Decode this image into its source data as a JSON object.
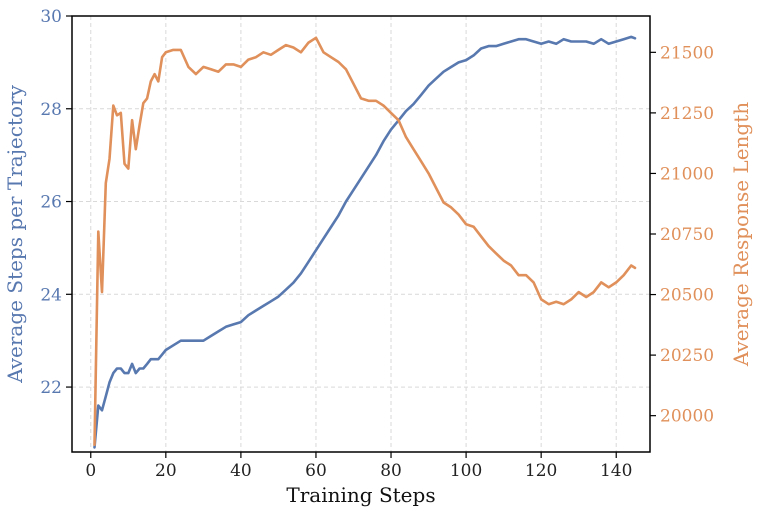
{
  "chart_data": {
    "type": "line",
    "xlabel": "Training Steps",
    "ylabel_left": "Average Steps per Trajectory",
    "ylabel_right": "Average Response Length",
    "xlim": [
      -5,
      149
    ],
    "ylim_left": [
      20.6,
      30.0
    ],
    "ylim_right": [
      19850,
      21650
    ],
    "x_ticks": [
      0,
      20,
      40,
      60,
      80,
      100,
      120,
      140
    ],
    "y_left_ticks": [
      22,
      24,
      26,
      28,
      30
    ],
    "y_right_ticks": [
      20000,
      20250,
      20500,
      20750,
      21000,
      21250,
      21500
    ],
    "grid": true,
    "colors": {
      "left": "#5878b0",
      "right": "#e0905a",
      "grid": "#d9d9d9"
    },
    "series": [
      {
        "axis": "left",
        "points": [
          [
            1,
            20.7
          ],
          [
            2,
            21.6
          ],
          [
            3,
            21.5
          ],
          [
            4,
            21.8
          ],
          [
            5,
            22.1
          ],
          [
            6,
            22.3
          ],
          [
            7,
            22.4
          ],
          [
            8,
            22.4
          ],
          [
            9,
            22.3
          ],
          [
            10,
            22.3
          ],
          [
            11,
            22.5
          ],
          [
            12,
            22.3
          ],
          [
            13,
            22.4
          ],
          [
            14,
            22.4
          ],
          [
            15,
            22.5
          ],
          [
            16,
            22.6
          ],
          [
            17,
            22.6
          ],
          [
            18,
            22.6
          ],
          [
            19,
            22.7
          ],
          [
            20,
            22.8
          ],
          [
            22,
            22.9
          ],
          [
            24,
            23.0
          ],
          [
            26,
            23.0
          ],
          [
            28,
            23.0
          ],
          [
            30,
            23.0
          ],
          [
            32,
            23.1
          ],
          [
            34,
            23.2
          ],
          [
            36,
            23.3
          ],
          [
            38,
            23.35
          ],
          [
            40,
            23.4
          ],
          [
            42,
            23.55
          ],
          [
            44,
            23.65
          ],
          [
            46,
            23.75
          ],
          [
            48,
            23.85
          ],
          [
            50,
            23.95
          ],
          [
            52,
            24.1
          ],
          [
            54,
            24.25
          ],
          [
            56,
            24.45
          ],
          [
            58,
            24.7
          ],
          [
            60,
            24.95
          ],
          [
            62,
            25.2
          ],
          [
            64,
            25.45
          ],
          [
            66,
            25.7
          ],
          [
            68,
            26.0
          ],
          [
            70,
            26.25
          ],
          [
            72,
            26.5
          ],
          [
            74,
            26.75
          ],
          [
            76,
            27.0
          ],
          [
            78,
            27.3
          ],
          [
            80,
            27.55
          ],
          [
            82,
            27.75
          ],
          [
            84,
            27.95
          ],
          [
            86,
            28.1
          ],
          [
            88,
            28.3
          ],
          [
            90,
            28.5
          ],
          [
            92,
            28.65
          ],
          [
            94,
            28.8
          ],
          [
            96,
            28.9
          ],
          [
            98,
            29.0
          ],
          [
            100,
            29.05
          ],
          [
            102,
            29.15
          ],
          [
            104,
            29.3
          ],
          [
            106,
            29.35
          ],
          [
            108,
            29.35
          ],
          [
            110,
            29.4
          ],
          [
            112,
            29.45
          ],
          [
            114,
            29.5
          ],
          [
            116,
            29.5
          ],
          [
            118,
            29.45
          ],
          [
            120,
            29.4
          ],
          [
            122,
            29.45
          ],
          [
            124,
            29.4
          ],
          [
            126,
            29.5
          ],
          [
            128,
            29.45
          ],
          [
            130,
            29.45
          ],
          [
            132,
            29.45
          ],
          [
            134,
            29.4
          ],
          [
            136,
            29.5
          ],
          [
            138,
            29.4
          ],
          [
            140,
            29.45
          ],
          [
            142,
            29.5
          ],
          [
            144,
            29.55
          ],
          [
            145,
            29.52
          ]
        ]
      },
      {
        "axis": "right",
        "points": [
          [
            1,
            19880
          ],
          [
            2,
            20760
          ],
          [
            3,
            20510
          ],
          [
            4,
            20960
          ],
          [
            5,
            21060
          ],
          [
            6,
            21280
          ],
          [
            7,
            21240
          ],
          [
            8,
            21250
          ],
          [
            9,
            21040
          ],
          [
            10,
            21020
          ],
          [
            11,
            21220
          ],
          [
            12,
            21100
          ],
          [
            13,
            21200
          ],
          [
            14,
            21290
          ],
          [
            15,
            21310
          ],
          [
            16,
            21380
          ],
          [
            17,
            21410
          ],
          [
            18,
            21380
          ],
          [
            19,
            21480
          ],
          [
            20,
            21500
          ],
          [
            22,
            21510
          ],
          [
            24,
            21510
          ],
          [
            26,
            21440
          ],
          [
            28,
            21410
          ],
          [
            30,
            21440
          ],
          [
            32,
            21430
          ],
          [
            34,
            21420
          ],
          [
            36,
            21450
          ],
          [
            38,
            21450
          ],
          [
            40,
            21440
          ],
          [
            42,
            21470
          ],
          [
            44,
            21480
          ],
          [
            46,
            21500
          ],
          [
            48,
            21490
          ],
          [
            50,
            21510
          ],
          [
            52,
            21530
          ],
          [
            54,
            21520
          ],
          [
            56,
            21500
          ],
          [
            58,
            21540
          ],
          [
            60,
            21560
          ],
          [
            62,
            21500
          ],
          [
            64,
            21480
          ],
          [
            66,
            21460
          ],
          [
            68,
            21430
          ],
          [
            70,
            21370
          ],
          [
            72,
            21310
          ],
          [
            74,
            21300
          ],
          [
            76,
            21300
          ],
          [
            78,
            21280
          ],
          [
            80,
            21250
          ],
          [
            82,
            21220
          ],
          [
            84,
            21150
          ],
          [
            86,
            21100
          ],
          [
            88,
            21050
          ],
          [
            90,
            21000
          ],
          [
            92,
            20940
          ],
          [
            94,
            20880
          ],
          [
            96,
            20860
          ],
          [
            98,
            20830
          ],
          [
            100,
            20790
          ],
          [
            102,
            20780
          ],
          [
            104,
            20740
          ],
          [
            106,
            20700
          ],
          [
            108,
            20670
          ],
          [
            110,
            20640
          ],
          [
            112,
            20620
          ],
          [
            114,
            20580
          ],
          [
            116,
            20580
          ],
          [
            118,
            20550
          ],
          [
            120,
            20480
          ],
          [
            122,
            20460
          ],
          [
            124,
            20470
          ],
          [
            126,
            20460
          ],
          [
            128,
            20480
          ],
          [
            130,
            20510
          ],
          [
            132,
            20490
          ],
          [
            134,
            20510
          ],
          [
            136,
            20550
          ],
          [
            138,
            20530
          ],
          [
            140,
            20550
          ],
          [
            142,
            20580
          ],
          [
            144,
            20620
          ],
          [
            145,
            20610
          ]
        ]
      }
    ]
  }
}
